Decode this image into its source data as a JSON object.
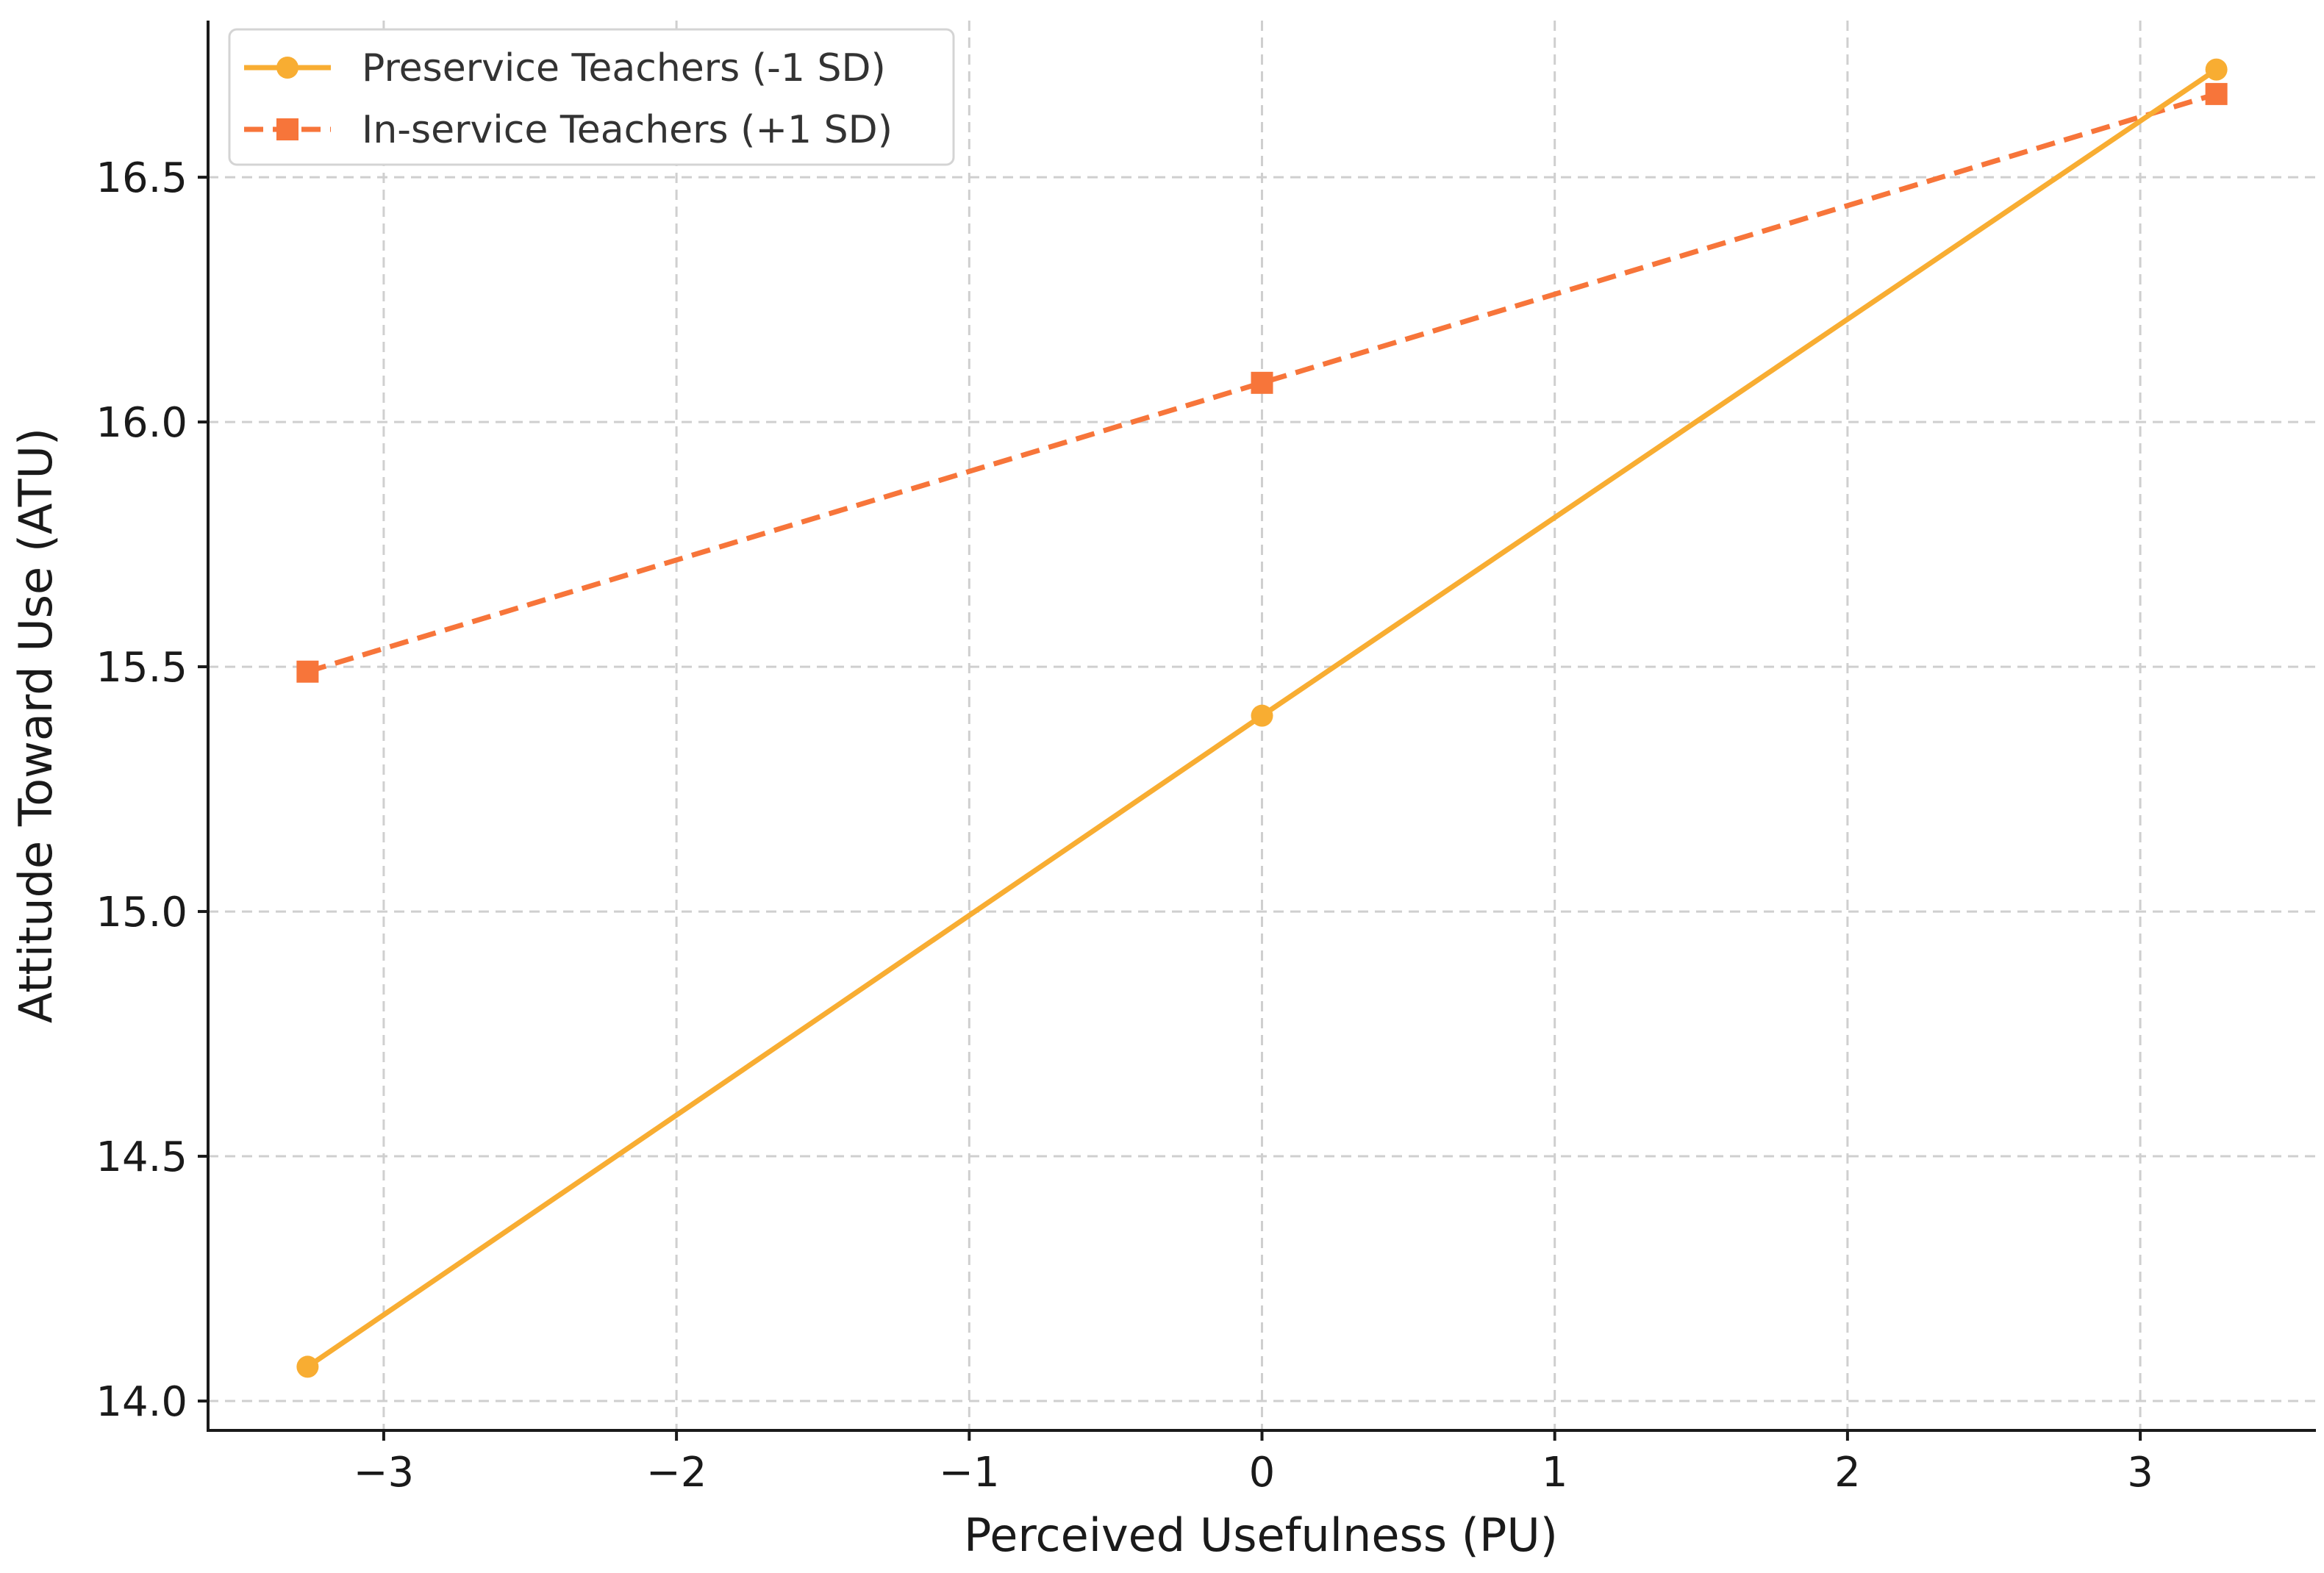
{
  "chart_data": {
    "type": "line",
    "title": "",
    "xlabel": "Perceived Usefulness (PU)",
    "ylabel": "Attitude Toward Use (ATU)",
    "xlim": [
      -3.6,
      3.6
    ],
    "ylim": [
      13.94,
      16.82
    ],
    "xticks": [
      -3,
      -2,
      -1,
      0,
      1,
      2,
      3
    ],
    "xtick_labels": [
      "−3",
      "−2",
      "−1",
      "0",
      "1",
      "2",
      "3"
    ],
    "yticks": [
      14.0,
      14.5,
      15.0,
      15.5,
      16.0,
      16.5
    ],
    "ytick_labels": [
      "14.0",
      "14.5",
      "15.0",
      "15.5",
      "16.0",
      "16.5"
    ],
    "grid": true,
    "legend_position": "top-left",
    "series": [
      {
        "name": "Preservice Teachers (-1 SD)",
        "x": [
          -3.26,
          0,
          3.26
        ],
        "y": [
          14.07,
          15.4,
          16.72
        ],
        "color": "#F8AD32",
        "line_style": "solid",
        "marker": "circle"
      },
      {
        "name": "In-service Teachers (+1 SD)",
        "x": [
          -3.26,
          0,
          3.26
        ],
        "y": [
          15.49,
          16.08,
          16.67
        ],
        "color": "#F7753A",
        "line_style": "dashed",
        "marker": "square"
      }
    ]
  }
}
